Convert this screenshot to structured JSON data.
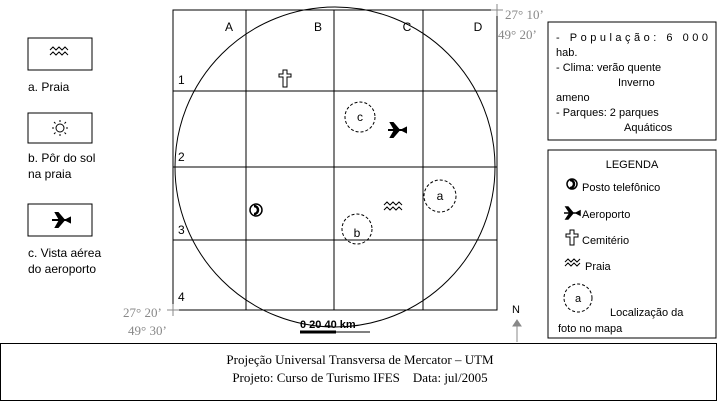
{
  "panels": [
    {
      "label": [
        "a. Praia"
      ]
    },
    {
      "label": [
        "b. Pôr do sol",
        "na praia"
      ]
    },
    {
      "label": [
        "c. Vista aérea",
        "do aeroporto"
      ]
    }
  ],
  "grid": {
    "columns": [
      "A",
      "B",
      "C",
      "D"
    ],
    "rows": [
      "1",
      "2",
      "3",
      "4"
    ]
  },
  "coordinates": {
    "top_right": [
      "27° 10’",
      "49° 20’"
    ],
    "bottom_left": [
      "27° 20’",
      "49° 30’"
    ]
  },
  "markers": [
    "a",
    "b",
    "c"
  ],
  "info": [
    "- População:  6  000",
    "hab.",
    "- Clima: verão quente",
    "Inverno",
    "ameno",
    "- Parques: 2 parques",
    "Aquáticos"
  ],
  "legend": {
    "title": "LEGENDA",
    "items": [
      "Posto telefônico",
      "Aeroporto",
      "Cemitério",
      "Praia"
    ],
    "marker": "a",
    "location": [
      "Localização da",
      "foto no mapa"
    ]
  },
  "scale": "0  20  40 km",
  "north": "N",
  "footer": [
    "Projeção Universal Transversa de Mercator – UTM",
    "Projeto: Curso de Turismo IFES    Data: jul/2005"
  ]
}
